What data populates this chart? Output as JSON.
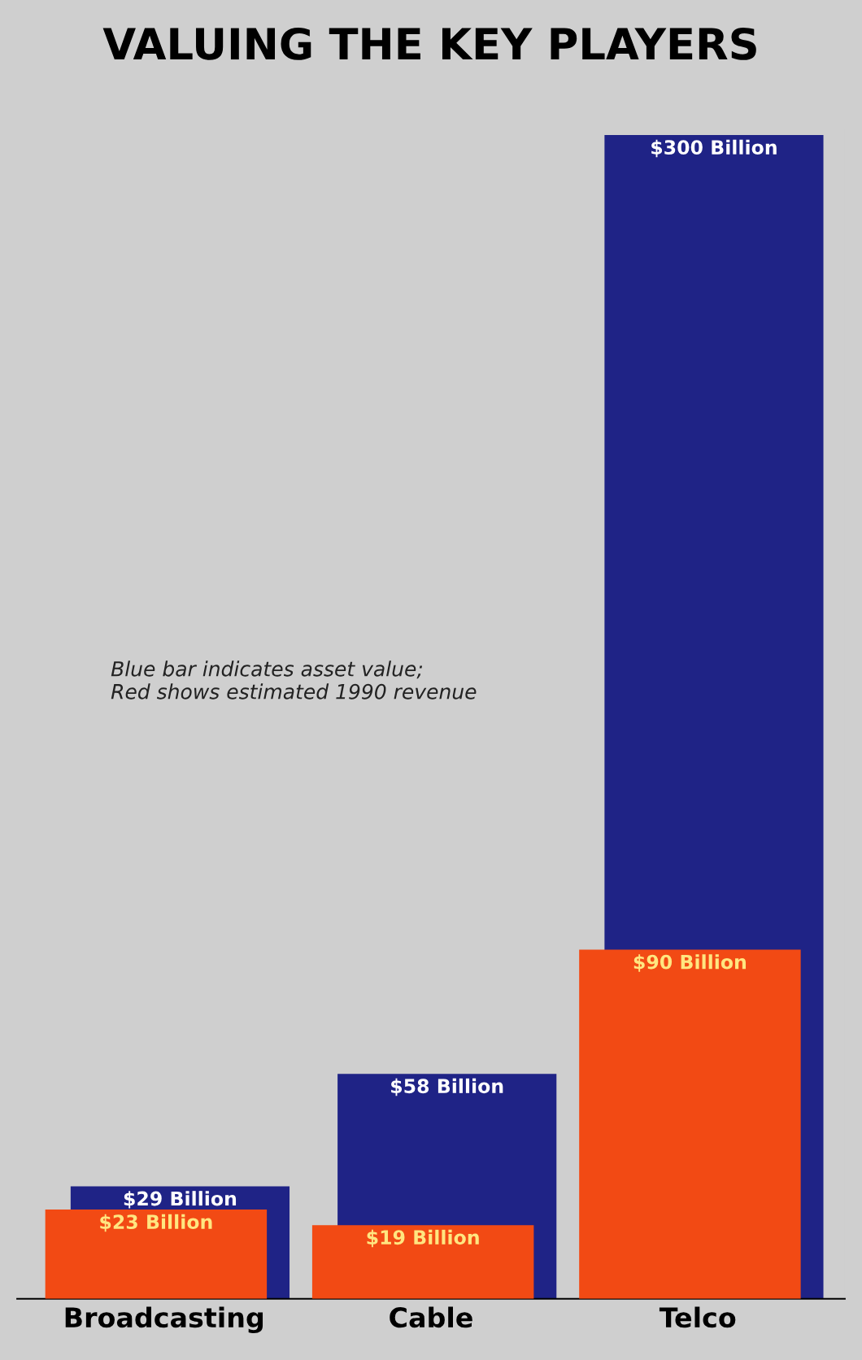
{
  "chart_data": {
    "type": "bar",
    "title": "VALUING THE KEY PLAYERS",
    "categories": [
      "Broadcasting",
      "Cable",
      "Telco"
    ],
    "series": [
      {
        "color": "#1f2386",
        "values": [
          29,
          58,
          300
        ],
        "value_labels": [
          "$29 Billion",
          "$58 Billion",
          "$300 Billion"
        ]
      },
      {
        "color": "#f24a14",
        "values": [
          23,
          19,
          90
        ],
        "value_labels": [
          "$23 Billion",
          "$19 Billion",
          "$90 Billion"
        ]
      }
    ],
    "annotations": [
      "Blue bar indicates asset value;\nRed shows estimated 1990 revenue"
    ],
    "grid": false,
    "legend": false
  }
}
